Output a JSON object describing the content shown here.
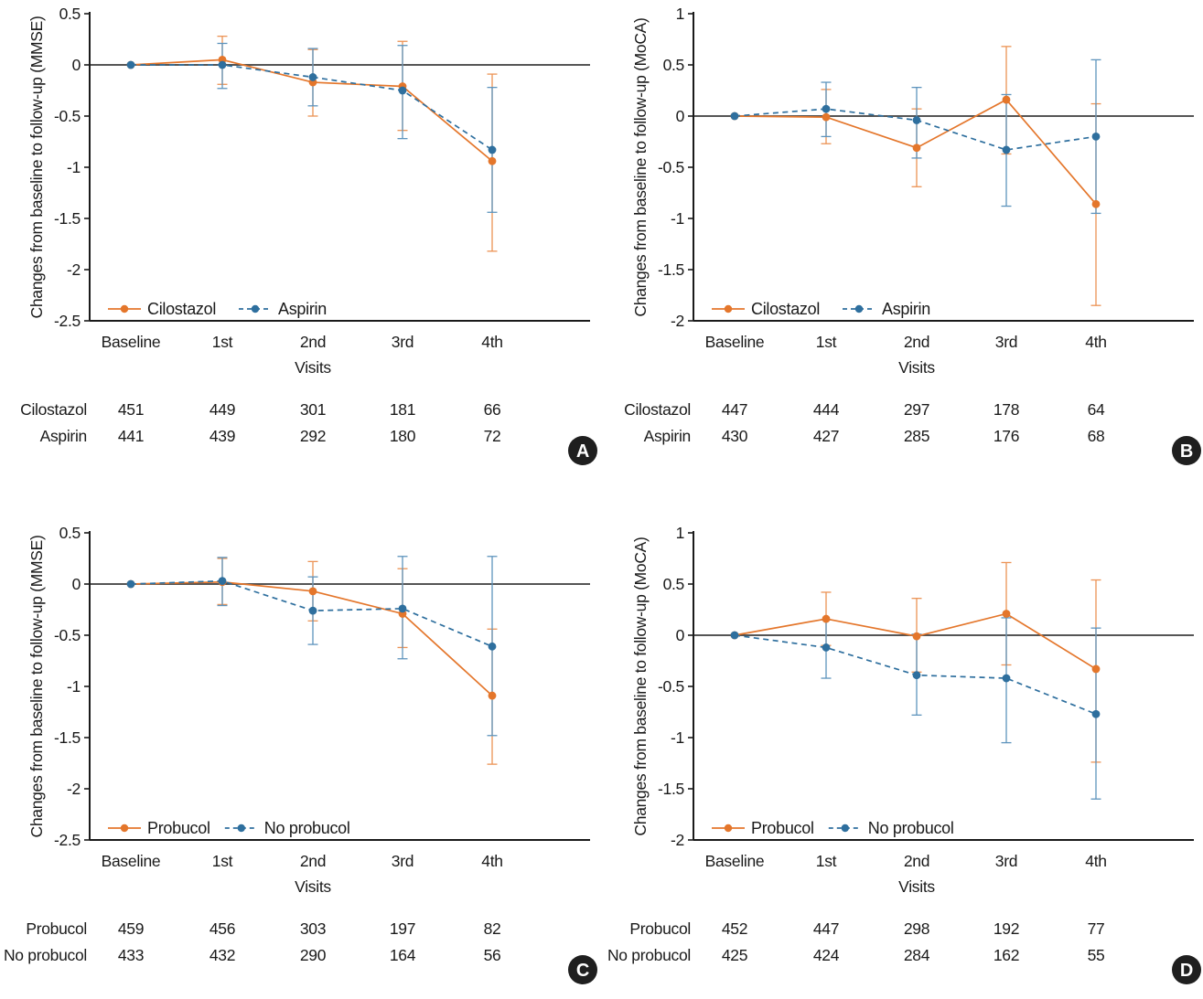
{
  "figure": {
    "background": "#ffffff",
    "text_color": "#1a1a1a",
    "axis_color": "#1a1a1a",
    "zero_line_color": "#3d3d3d",
    "badge_color": "#1f1f1f",
    "badge_text_color": "#ffffff"
  },
  "chart_data": [
    {
      "type": "line",
      "badge": "A",
      "ylabel": "Changes from baseline to follow-up (MMSE)",
      "xlabel": "Visits",
      "categories": [
        "Baseline",
        "1st",
        "2nd",
        "3rd",
        "4th"
      ],
      "ylim": [
        -2.5,
        0.5
      ],
      "ytick_labels": [
        "0.5",
        "0",
        "-0.5",
        "-1",
        "-1.5",
        "-2",
        "-2.5"
      ],
      "yticks": [
        0.5,
        0,
        -0.5,
        -1,
        -1.5,
        -2,
        -2.5
      ],
      "grid": false,
      "legend_position": "bottom-left",
      "series": [
        {
          "name": "Cilostazol",
          "color": "#E4762B",
          "whisker_color": "#EC9355",
          "style": "solid",
          "values": [
            0,
            0.05,
            -0.17,
            -0.21,
            -0.94
          ],
          "ci_low": [
            0,
            -0.19,
            -0.5,
            -0.64,
            -1.82
          ],
          "ci_high": [
            0,
            0.28,
            0.15,
            0.23,
            -0.09
          ],
          "counts": [
            451,
            449,
            301,
            181,
            66
          ]
        },
        {
          "name": "Aspirin",
          "color": "#2E6F9E",
          "whisker_color": "#5E94BD",
          "style": "dashed",
          "values": [
            0,
            0.0,
            -0.12,
            -0.25,
            -0.83
          ],
          "ci_low": [
            0,
            -0.23,
            -0.4,
            -0.72,
            -1.44
          ],
          "ci_high": [
            0,
            0.21,
            0.16,
            0.19,
            -0.22
          ],
          "counts": [
            441,
            439,
            292,
            180,
            72
          ]
        }
      ]
    },
    {
      "type": "line",
      "badge": "B",
      "ylabel": "Changes from baseline to follow-up (MoCA)",
      "xlabel": "Visits",
      "categories": [
        "Baseline",
        "1st",
        "2nd",
        "3rd",
        "4th"
      ],
      "ylim": [
        -2,
        1
      ],
      "ytick_labels": [
        "1",
        "0.5",
        "0",
        "-0.5",
        "-1",
        "-1.5",
        "-2"
      ],
      "yticks": [
        1,
        0.5,
        0,
        -0.5,
        -1,
        -1.5,
        -2
      ],
      "grid": false,
      "legend_position": "bottom-left",
      "series": [
        {
          "name": "Cilostazol",
          "color": "#E4762B",
          "whisker_color": "#EC9355",
          "style": "solid",
          "values": [
            0,
            -0.01,
            -0.31,
            0.16,
            -0.86
          ],
          "ci_low": [
            0,
            -0.27,
            -0.69,
            -0.37,
            -1.85
          ],
          "ci_high": [
            0,
            0.26,
            0.07,
            0.68,
            0.12
          ],
          "counts": [
            447,
            444,
            297,
            178,
            64
          ]
        },
        {
          "name": "Aspirin",
          "color": "#2E6F9E",
          "whisker_color": "#5E94BD",
          "style": "dashed",
          "values": [
            0,
            0.07,
            -0.04,
            -0.33,
            -0.2
          ],
          "ci_low": [
            0,
            -0.2,
            -0.41,
            -0.88,
            -0.95
          ],
          "ci_high": [
            0,
            0.33,
            0.28,
            0.21,
            0.55
          ],
          "counts": [
            430,
            427,
            285,
            176,
            68
          ]
        }
      ]
    },
    {
      "type": "line",
      "badge": "C",
      "ylabel": "Changes from baseline to follow-up (MMSE)",
      "xlabel": "Visits",
      "categories": [
        "Baseline",
        "1st",
        "2nd",
        "3rd",
        "4th"
      ],
      "ylim": [
        -2.5,
        0.5
      ],
      "ytick_labels": [
        "0.5",
        "0",
        "-0.5",
        "-1",
        "-1.5",
        "-2",
        "-2.5"
      ],
      "yticks": [
        0.5,
        0,
        -0.5,
        -1,
        -1.5,
        -2,
        -2.5
      ],
      "grid": false,
      "legend_position": "bottom-left",
      "series": [
        {
          "name": "Probucol",
          "color": "#E4762B",
          "whisker_color": "#EC9355",
          "style": "solid",
          "values": [
            0,
            0.02,
            -0.07,
            -0.29,
            -1.09
          ],
          "ci_low": [
            0,
            -0.2,
            -0.36,
            -0.62,
            -1.76
          ],
          "ci_high": [
            0,
            0.25,
            0.22,
            0.15,
            -0.44
          ],
          "counts": [
            459,
            456,
            303,
            197,
            82
          ]
        },
        {
          "name": "No probucol",
          "color": "#2E6F9E",
          "whisker_color": "#5E94BD",
          "style": "dashed",
          "values": [
            0,
            0.03,
            -0.26,
            -0.24,
            -0.61
          ],
          "ci_low": [
            0,
            -0.21,
            -0.59,
            -0.73,
            -1.48
          ],
          "ci_high": [
            0,
            0.26,
            0.07,
            0.27,
            0.27
          ],
          "counts": [
            433,
            432,
            290,
            164,
            56
          ]
        }
      ]
    },
    {
      "type": "line",
      "badge": "D",
      "ylabel": "Changes from baseline to follow-up (MoCA)",
      "xlabel": "Visits",
      "categories": [
        "Baseline",
        "1st",
        "2nd",
        "3rd",
        "4th"
      ],
      "ylim": [
        -2,
        1
      ],
      "ytick_labels": [
        "1",
        "0.5",
        "0",
        "-0.5",
        "-1",
        "-1.5",
        "-2"
      ],
      "yticks": [
        1,
        0.5,
        0,
        -0.5,
        -1,
        -1.5,
        -2
      ],
      "grid": false,
      "legend_position": "bottom-left",
      "series": [
        {
          "name": "Probucol",
          "color": "#E4762B",
          "whisker_color": "#EC9355",
          "style": "solid",
          "values": [
            0,
            0.16,
            -0.01,
            0.21,
            -0.33
          ],
          "ci_low": [
            0,
            -0.1,
            -0.36,
            -0.29,
            -1.24
          ],
          "ci_high": [
            0,
            0.42,
            0.36,
            0.71,
            0.54
          ],
          "counts": [
            452,
            447,
            298,
            192,
            77
          ]
        },
        {
          "name": "No probucol",
          "color": "#2E6F9E",
          "whisker_color": "#5E94BD",
          "style": "dashed",
          "values": [
            0,
            -0.12,
            -0.39,
            -0.42,
            -0.77
          ],
          "ci_low": [
            0,
            -0.42,
            -0.78,
            -1.05,
            -1.6
          ],
          "ci_high": [
            0,
            0.15,
            0.01,
            0.17,
            0.07
          ],
          "counts": [
            425,
            424,
            284,
            162,
            55
          ]
        }
      ]
    }
  ]
}
